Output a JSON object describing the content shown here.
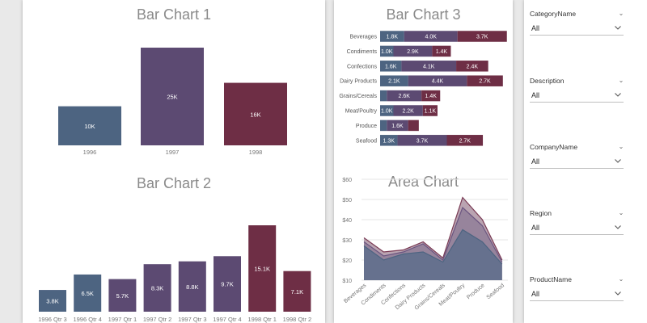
{
  "colors": {
    "c1": "#4d6481",
    "c2": "#5c4a72",
    "c3": "#6e2e45",
    "grid": "#e5e5e5",
    "axis_text": "#777777"
  },
  "chart_data": [
    {
      "type": "bar",
      "title": "Bar Chart 1",
      "categories": [
        "1996",
        "1997",
        "1998"
      ],
      "values": [
        10,
        25,
        16
      ],
      "data_labels": [
        "10K",
        "25K",
        "16K"
      ],
      "ylim": [
        0,
        25
      ]
    },
    {
      "type": "bar",
      "title": "Bar Chart 2",
      "categories": [
        "1996 Qtr 3",
        "1996 Qtr 4",
        "1997 Qtr 1",
        "1997 Qtr 2",
        "1997 Qtr 3",
        "1997 Qtr 4",
        "1998 Qtr 1",
        "1998 Qtr 2"
      ],
      "values": [
        3.8,
        6.5,
        5.7,
        8.3,
        8.8,
        9.7,
        15.1,
        7.1
      ],
      "data_labels": [
        "3.8K",
        "6.5K",
        "5.7K",
        "8.3K",
        "8.8K",
        "9.7K",
        "15.1K",
        "7.1K"
      ],
      "ylim": [
        0,
        15.1
      ]
    },
    {
      "type": "bar",
      "orientation": "horizontal",
      "stacked": true,
      "title": "Bar Chart 3",
      "categories": [
        "Beverages",
        "Condiments",
        "Confections",
        "Dairy Products",
        "Grains/Cereals",
        "Meat/Poultry",
        "Produce",
        "Seafood"
      ],
      "series": [
        {
          "values": [
            1.8,
            1.0,
            1.6,
            2.1,
            0.5,
            1.0,
            0.5,
            1.3
          ],
          "labels": [
            "1.8K",
            "1.0K",
            "1.6K",
            "2.1K",
            "",
            "1.0K",
            "",
            "1.3K"
          ]
        },
        {
          "values": [
            4.0,
            2.9,
            4.1,
            4.4,
            2.6,
            2.2,
            1.6,
            3.7
          ],
          "labels": [
            "4.0K",
            "2.9K",
            "4.1K",
            "4.4K",
            "2.6K",
            "2.2K",
            "1.6K",
            "3.7K"
          ]
        },
        {
          "values": [
            3.7,
            1.4,
            2.4,
            2.7,
            1.4,
            1.1,
            0.8,
            2.7
          ],
          "labels": [
            "3.7K",
            "1.4K",
            "2.4K",
            "2.7K",
            "1.4K",
            "1.1K",
            "",
            "2.7K"
          ]
        }
      ],
      "xlim": [
        0,
        9.5
      ]
    },
    {
      "type": "area",
      "title": "Area Chart",
      "categories": [
        "Beverages",
        "Condiments",
        "Confections",
        "Dairy Products",
        "Grains/Cereals",
        "Meat/Poultry",
        "Produce",
        "Seafood"
      ],
      "series": [
        {
          "values": [
            31,
            24,
            25,
            29,
            21,
            51,
            40,
            20
          ]
        },
        {
          "values": [
            29,
            22,
            24,
            28,
            20,
            46,
            37,
            19
          ]
        },
        {
          "values": [
            27,
            20,
            23,
            24,
            19,
            35,
            29,
            18
          ]
        }
      ],
      "ylim": [
        10,
        60
      ],
      "yticks": [
        10,
        20,
        30,
        40,
        50,
        60
      ],
      "ytick_labels": [
        "$10",
        "$20",
        "$30",
        "$40",
        "$50",
        "$60"
      ],
      "grid": true
    }
  ],
  "slicers": [
    {
      "title": "CategoryName",
      "value": "All"
    },
    {
      "title": "Description",
      "value": "All"
    },
    {
      "title": "CompanyName",
      "value": "All"
    },
    {
      "title": "Region",
      "value": "All"
    },
    {
      "title": "ProductName",
      "value": "All"
    }
  ]
}
